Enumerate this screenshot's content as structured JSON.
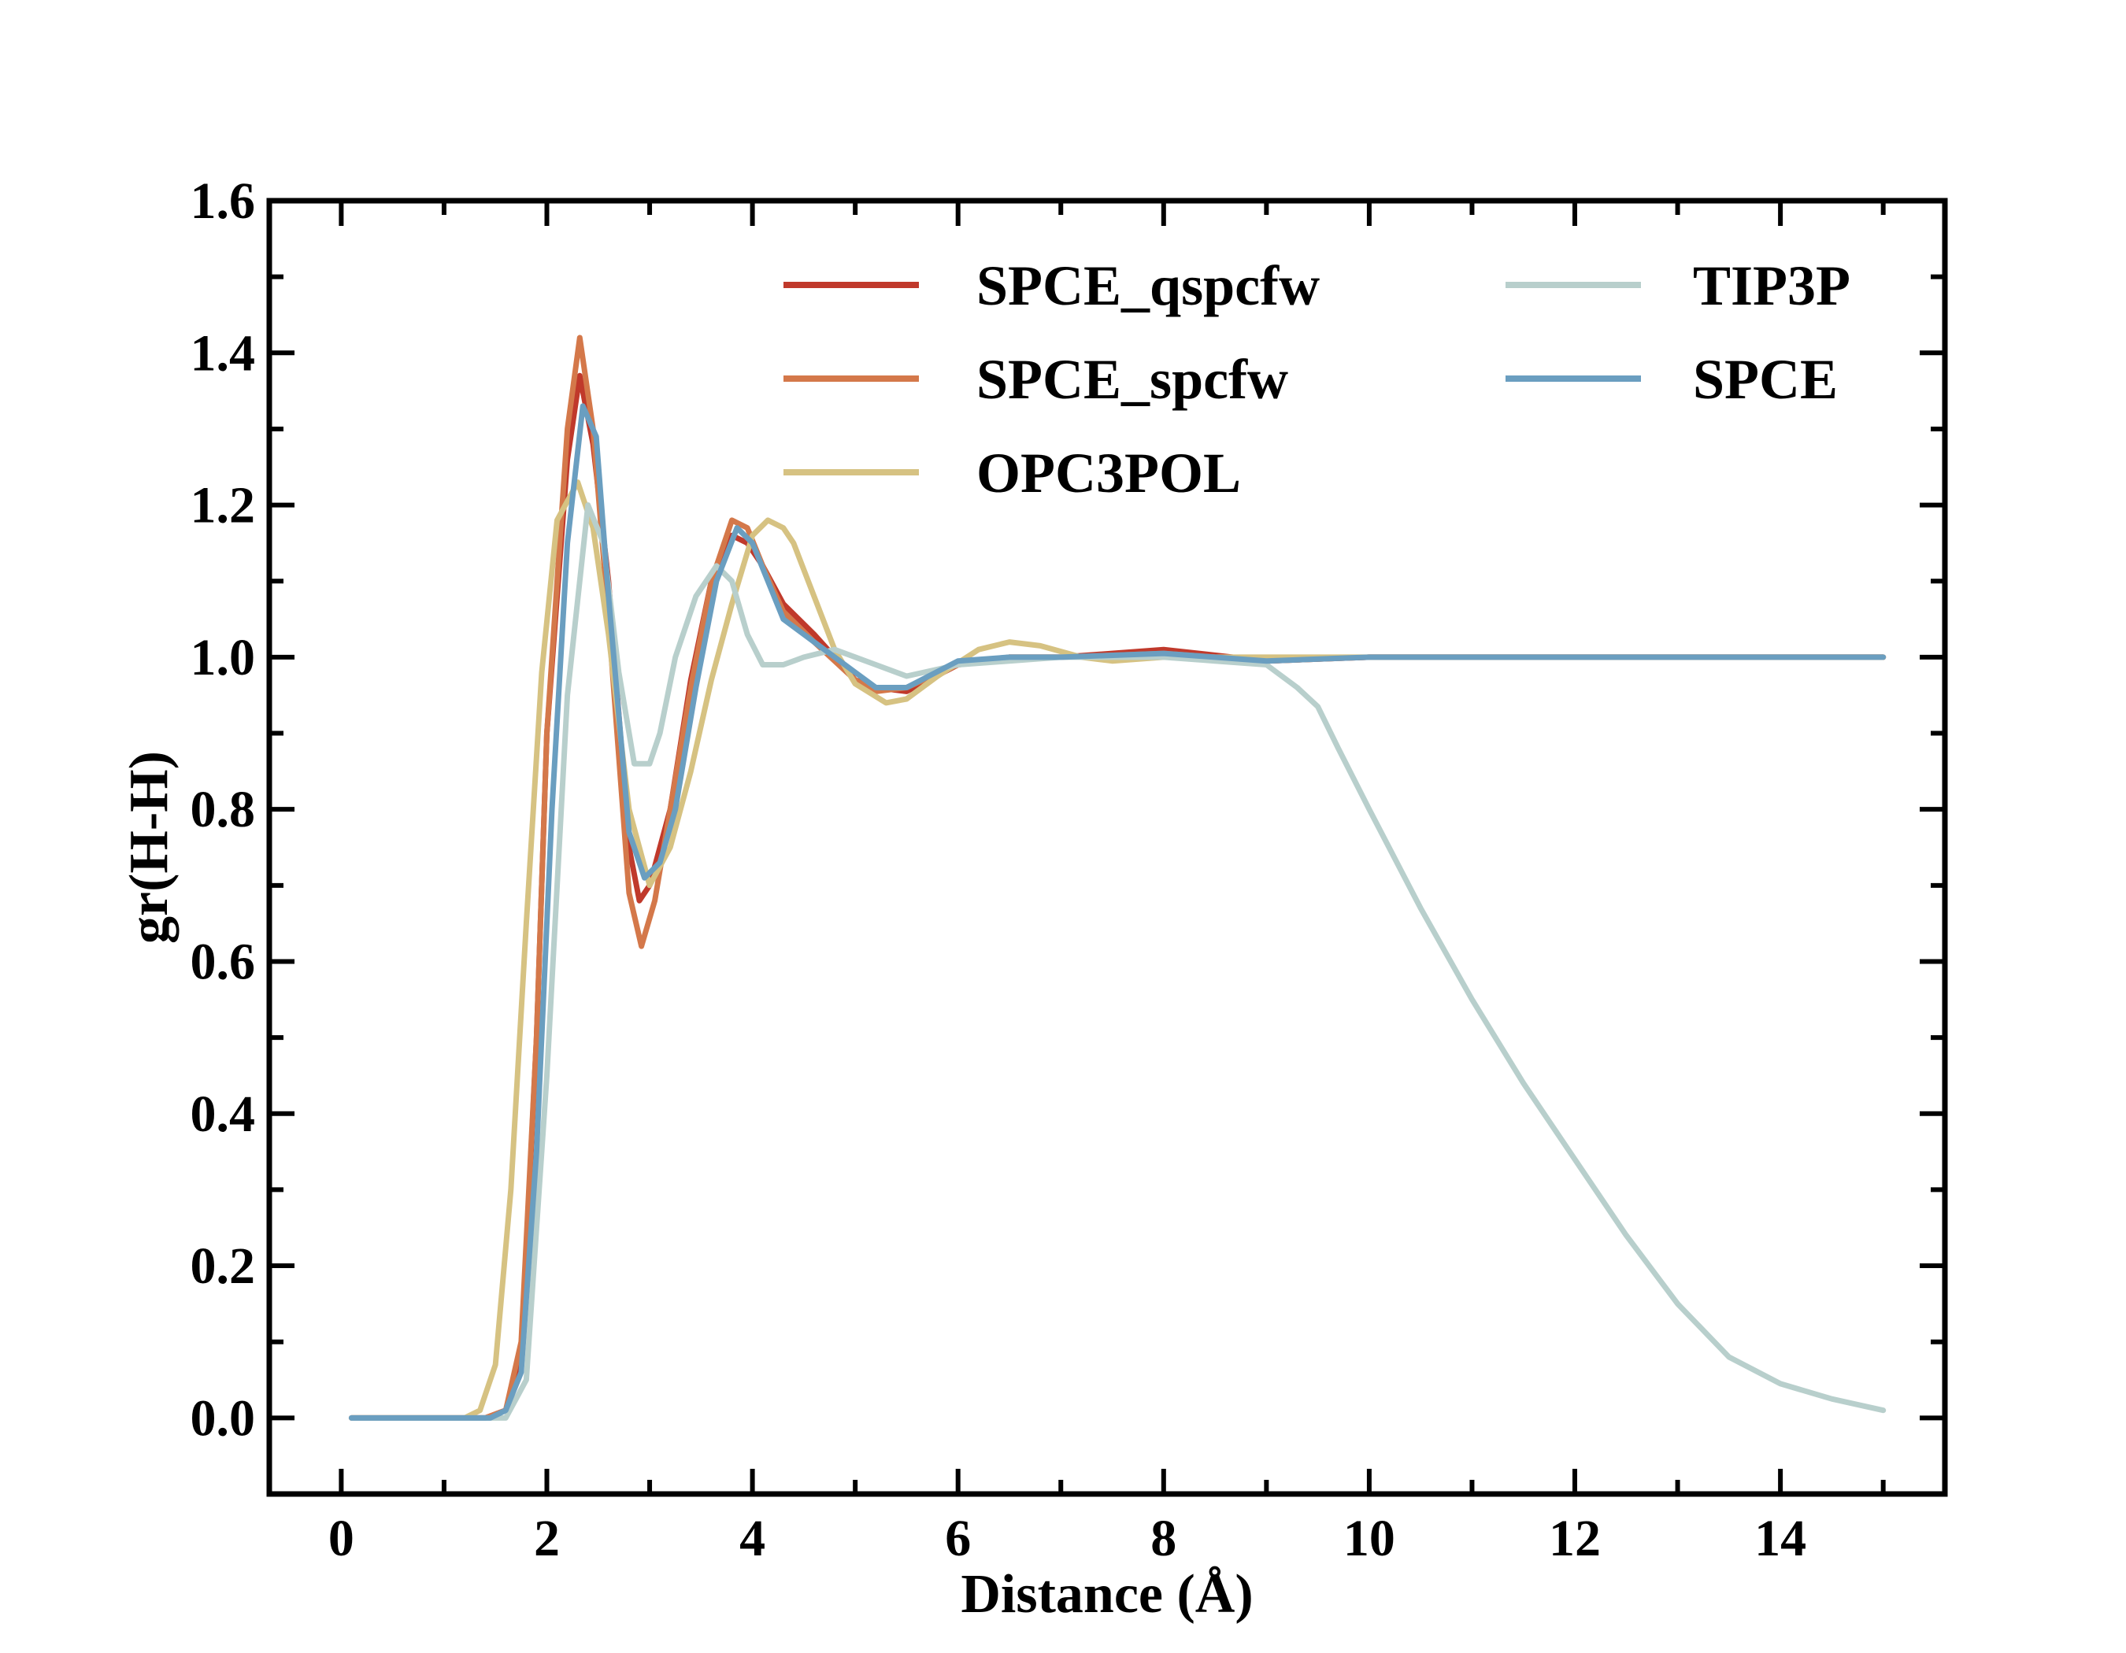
{
  "chart_data": {
    "type": "line",
    "title": "",
    "xlabel": "Distance (Å)",
    "ylabel": "gr(H-H)",
    "xlim": [
      -0.7,
      15.6
    ],
    "ylim": [
      -0.1,
      1.6
    ],
    "xticks": [
      "0",
      "2",
      "4",
      "6",
      "8",
      "10",
      "12",
      "14"
    ],
    "yticks": [
      "0.0",
      "0.2",
      "0.4",
      "0.6",
      "0.8",
      "1.0",
      "1.2",
      "1.4",
      "1.6"
    ],
    "grid": false,
    "legend": "upper right, two columns",
    "series": [
      {
        "name": "SPCE_qspcfw",
        "color": "#c0392b",
        "x": [
          0.1,
          1.2,
          1.4,
          1.6,
          1.75,
          1.9,
          2.0,
          2.2,
          2.32,
          2.45,
          2.6,
          2.8,
          2.9,
          3.0,
          3.2,
          3.4,
          3.6,
          3.8,
          3.95,
          4.1,
          4.3,
          4.6,
          5.0,
          5.2,
          5.5,
          6.0,
          6.5,
          7.0,
          8.0,
          9.0,
          10.0,
          11.0,
          12.0,
          13.0,
          14.0,
          15.0
        ],
        "y": [
          0.0,
          0.0,
          0.0,
          0.01,
          0.08,
          0.5,
          0.9,
          1.26,
          1.37,
          1.28,
          1.1,
          0.75,
          0.68,
          0.7,
          0.8,
          0.97,
          1.1,
          1.16,
          1.15,
          1.12,
          1.07,
          1.03,
          0.97,
          0.96,
          0.955,
          0.99,
          1.0,
          1.0,
          1.01,
          0.995,
          1.0,
          1.0,
          1.0,
          1.0,
          1.0,
          1.0
        ]
      },
      {
        "name": "SPCE_spcfw",
        "color": "#d4784a",
        "x": [
          0.1,
          1.2,
          1.4,
          1.6,
          1.75,
          1.9,
          2.0,
          2.2,
          2.32,
          2.45,
          2.6,
          2.8,
          2.92,
          3.05,
          3.2,
          3.4,
          3.6,
          3.8,
          3.95,
          4.1,
          4.3,
          4.6,
          5.0,
          5.2,
          5.5,
          6.0,
          6.5,
          7.0,
          8.0,
          9.0,
          10.0,
          11.0,
          12.0,
          13.0,
          14.0,
          15.0
        ],
        "y": [
          0.0,
          0.0,
          0.0,
          0.01,
          0.1,
          0.5,
          0.9,
          1.3,
          1.42,
          1.3,
          1.05,
          0.69,
          0.62,
          0.68,
          0.8,
          0.96,
          1.1,
          1.18,
          1.17,
          1.12,
          1.06,
          1.02,
          0.97,
          0.955,
          0.96,
          0.99,
          1.0,
          1.0,
          1.005,
          0.995,
          1.0,
          1.0,
          1.0,
          1.0,
          1.0,
          1.0
        ]
      },
      {
        "name": "OPC3POL",
        "color": "#d6c282",
        "x": [
          0.1,
          1.2,
          1.35,
          1.5,
          1.65,
          1.8,
          1.95,
          2.1,
          2.3,
          2.45,
          2.6,
          2.8,
          3.0,
          3.2,
          3.4,
          3.6,
          3.8,
          4.0,
          4.15,
          4.3,
          4.4,
          4.6,
          4.8,
          5.0,
          5.3,
          5.5,
          5.8,
          6.2,
          6.5,
          6.8,
          7.2,
          7.5,
          8.0,
          9.0,
          10.0,
          11.0,
          12.0,
          13.0,
          14.0,
          15.0
        ],
        "y": [
          0.0,
          0.0,
          0.01,
          0.07,
          0.3,
          0.65,
          0.98,
          1.18,
          1.23,
          1.17,
          1.03,
          0.8,
          0.7,
          0.75,
          0.85,
          0.97,
          1.07,
          1.16,
          1.18,
          1.17,
          1.15,
          1.08,
          1.01,
          0.965,
          0.94,
          0.945,
          0.975,
          1.01,
          1.02,
          1.015,
          1.0,
          0.995,
          1.0,
          1.0,
          1.0,
          1.0,
          1.0,
          1.0,
          1.0,
          1.0
        ]
      },
      {
        "name": "TIP3P",
        "color": "#b8cfcc",
        "x": [
          0.1,
          1.2,
          1.4,
          1.6,
          1.8,
          2.0,
          2.2,
          2.4,
          2.55,
          2.7,
          2.85,
          3.0,
          3.1,
          3.25,
          3.45,
          3.65,
          3.8,
          3.95,
          4.1,
          4.3,
          4.5,
          4.8,
          5.2,
          5.5,
          6.0,
          7.0,
          8.0,
          8.5,
          9.0,
          9.3,
          9.5,
          9.7,
          10.0,
          10.5,
          11.0,
          11.5,
          12.0,
          12.5,
          13.0,
          13.5,
          14.0,
          14.5,
          15.0
        ],
        "y": [
          0.0,
          0.0,
          0.0,
          0.0,
          0.05,
          0.45,
          0.95,
          1.2,
          1.15,
          0.98,
          0.86,
          0.86,
          0.9,
          1.0,
          1.08,
          1.12,
          1.1,
          1.03,
          0.99,
          0.99,
          1.0,
          1.01,
          0.99,
          0.975,
          0.99,
          1.0,
          1.0,
          0.995,
          0.99,
          0.96,
          0.935,
          0.88,
          0.8,
          0.67,
          0.55,
          0.44,
          0.34,
          0.24,
          0.15,
          0.08,
          0.045,
          0.025,
          0.01
        ]
      },
      {
        "name": "SPCE",
        "color": "#6a9ec0",
        "x": [
          0.1,
          1.2,
          1.45,
          1.6,
          1.75,
          1.9,
          2.05,
          2.2,
          2.35,
          2.48,
          2.6,
          2.8,
          2.95,
          3.1,
          3.25,
          3.45,
          3.65,
          3.85,
          4.0,
          4.15,
          4.3,
          4.6,
          5.0,
          5.2,
          5.5,
          6.0,
          6.5,
          7.0,
          8.0,
          9.0,
          10.0,
          11.0,
          12.0,
          13.0,
          14.0,
          15.0
        ],
        "y": [
          0.0,
          0.0,
          0.0,
          0.01,
          0.06,
          0.35,
          0.8,
          1.15,
          1.33,
          1.29,
          1.08,
          0.77,
          0.71,
          0.73,
          0.8,
          0.96,
          1.1,
          1.17,
          1.15,
          1.1,
          1.05,
          1.02,
          0.98,
          0.96,
          0.96,
          0.995,
          1.0,
          1.0,
          1.005,
          0.995,
          1.0,
          1.0,
          1.0,
          1.0,
          1.0,
          1.0
        ]
      }
    ]
  }
}
